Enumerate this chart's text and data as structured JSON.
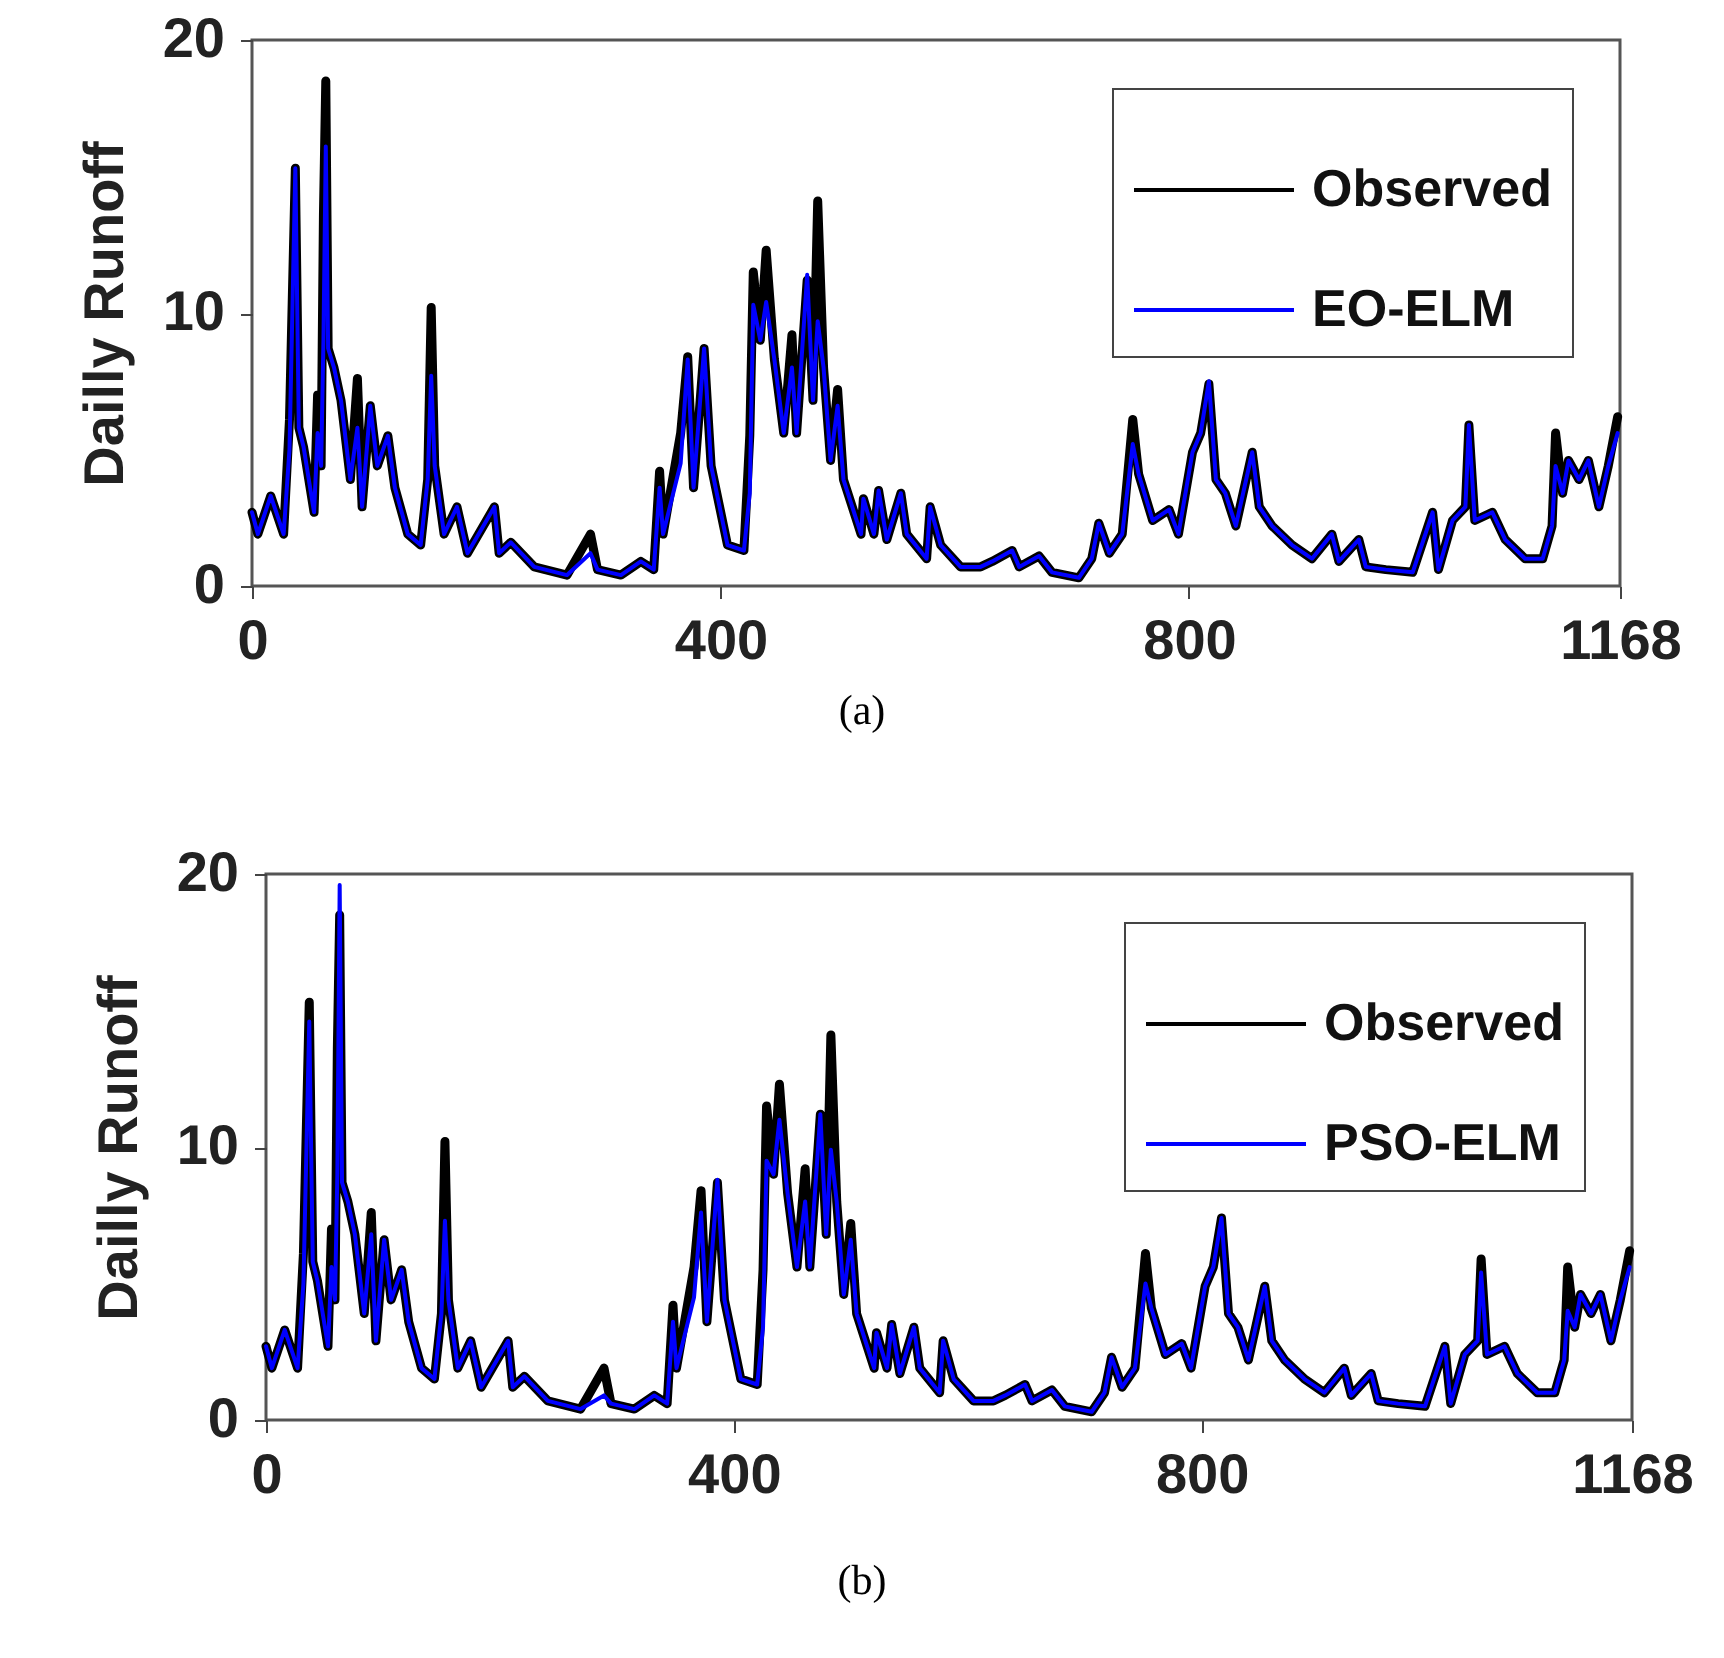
{
  "chart_data": [
    {
      "type": "line",
      "ylabel": "Dailly Runoff",
      "annotations": [
        "(a)"
      ],
      "xlim": [
        0,
        1168
      ],
      "xticks": [
        0,
        400,
        800,
        1168
      ],
      "ylim": [
        0,
        20
      ],
      "yticks": [
        0,
        10,
        20
      ],
      "legend": "top right",
      "x": [
        0,
        5,
        16,
        27,
        32,
        37,
        40,
        44,
        53,
        56,
        59,
        61,
        63,
        65,
        70,
        76,
        84,
        90,
        94,
        101,
        107,
        116,
        122,
        133,
        144,
        150,
        153,
        156,
        164,
        175,
        184,
        207,
        211,
        221,
        241,
        269,
        289,
        295,
        315,
        332,
        343,
        348,
        351,
        366,
        372,
        377,
        386,
        392,
        406,
        420,
        425,
        428,
        434,
        439,
        446,
        454,
        461,
        465,
        474,
        479,
        483,
        488,
        494,
        500,
        505,
        520,
        522,
        531,
        535,
        542,
        554,
        559,
        576,
        579,
        588,
        605,
        622,
        632,
        649,
        655,
        672,
        683,
        706,
        717,
        723,
        732,
        743,
        752,
        757,
        769,
        783,
        791,
        803,
        810,
        817,
        823,
        831,
        840,
        854,
        860,
        871,
        888,
        905,
        922,
        928,
        945,
        951,
        968,
        991,
        1008,
        1013,
        1025,
        1036,
        1039,
        1044,
        1059,
        1070,
        1087,
        1102,
        1110,
        1113,
        1119,
        1124,
        1133,
        1141,
        1150,
        1158,
        1166
      ],
      "series": [
        {
          "name": "Observed",
          "color": "#000000",
          "values": [
            2.7,
            1.9,
            3.3,
            1.9,
            6.1,
            15.3,
            5.8,
            5.1,
            2.7,
            7.0,
            4.4,
            13.6,
            18.5,
            8.7,
            8.0,
            6.8,
            3.9,
            7.6,
            2.9,
            6.6,
            4.4,
            5.5,
            3.6,
            1.9,
            1.5,
            3.9,
            10.2,
            4.4,
            1.9,
            2.9,
            1.2,
            2.9,
            1.2,
            1.6,
            0.7,
            0.4,
            1.9,
            0.6,
            0.4,
            0.9,
            0.6,
            4.2,
            1.9,
            5.6,
            8.4,
            3.6,
            8.7,
            4.4,
            1.5,
            1.3,
            5.5,
            11.5,
            9.0,
            12.3,
            8.3,
            5.6,
            9.2,
            5.6,
            11.2,
            6.8,
            14.1,
            8.0,
            4.6,
            7.2,
            3.9,
            1.9,
            3.2,
            1.9,
            3.5,
            1.7,
            3.4,
            1.9,
            1.0,
            2.9,
            1.5,
            0.7,
            0.7,
            0.9,
            1.3,
            0.7,
            1.1,
            0.5,
            0.3,
            1.0,
            2.3,
            1.2,
            1.9,
            6.1,
            4.1,
            2.4,
            2.8,
            1.9,
            4.9,
            5.6,
            7.4,
            3.9,
            3.4,
            2.2,
            4.9,
            2.9,
            2.2,
            1.5,
            1.0,
            1.9,
            0.9,
            1.7,
            0.7,
            0.6,
            0.5,
            2.7,
            0.6,
            2.4,
            2.9,
            5.9,
            2.4,
            2.7,
            1.7,
            1.0,
            1.0,
            2.2,
            5.6,
            3.4,
            4.6,
            3.9,
            4.6,
            2.9,
            4.4,
            6.2
          ]
        },
        {
          "name": "EO-ELM",
          "color": "#0000ff",
          "values": [
            2.7,
            1.9,
            3.3,
            1.9,
            5.0,
            15.3,
            5.8,
            5.1,
            2.7,
            5.6,
            4.4,
            9.0,
            16.1,
            8.7,
            8.0,
            6.8,
            3.9,
            5.8,
            2.9,
            6.6,
            4.4,
            5.5,
            3.6,
            1.9,
            1.5,
            3.9,
            7.7,
            4.4,
            1.9,
            2.9,
            1.2,
            2.9,
            1.2,
            1.6,
            0.7,
            0.4,
            1.2,
            0.6,
            0.4,
            0.9,
            0.6,
            3.6,
            1.9,
            4.5,
            8.3,
            3.6,
            8.7,
            4.4,
            1.5,
            1.3,
            3.4,
            10.3,
            9.0,
            10.4,
            8.3,
            5.6,
            8.0,
            5.6,
            11.4,
            6.8,
            9.7,
            8.0,
            4.6,
            6.6,
            3.9,
            1.9,
            3.2,
            1.9,
            3.5,
            1.7,
            3.4,
            1.9,
            1.0,
            2.9,
            1.5,
            0.7,
            0.7,
            0.9,
            1.3,
            0.7,
            1.1,
            0.5,
            0.3,
            1.0,
            2.3,
            1.2,
            1.9,
            5.2,
            4.1,
            2.4,
            2.8,
            1.9,
            4.9,
            5.6,
            7.5,
            3.9,
            3.4,
            2.2,
            4.9,
            2.9,
            2.2,
            1.5,
            1.0,
            1.9,
            0.9,
            1.7,
            0.7,
            0.6,
            0.5,
            2.7,
            0.6,
            2.4,
            2.9,
            5.9,
            2.4,
            2.7,
            1.7,
            1.0,
            1.0,
            2.2,
            4.4,
            3.4,
            4.6,
            3.9,
            4.6,
            2.9,
            4.4,
            5.6
          ]
        }
      ]
    },
    {
      "type": "line",
      "ylabel": "Dailly Runoff",
      "annotations": [
        "(b)"
      ],
      "xlim": [
        0,
        1168
      ],
      "xticks": [
        0,
        400,
        800,
        1168
      ],
      "ylim": [
        0,
        20
      ],
      "yticks": [
        0,
        10,
        20
      ],
      "legend": "top right",
      "x": [
        0,
        5,
        16,
        27,
        32,
        37,
        40,
        44,
        53,
        56,
        59,
        61,
        63,
        65,
        70,
        76,
        84,
        90,
        94,
        101,
        107,
        116,
        122,
        133,
        144,
        150,
        153,
        156,
        164,
        175,
        184,
        207,
        211,
        221,
        241,
        269,
        289,
        295,
        315,
        332,
        343,
        348,
        351,
        366,
        372,
        377,
        386,
        392,
        406,
        420,
        425,
        428,
        434,
        439,
        446,
        454,
        461,
        465,
        474,
        479,
        483,
        488,
        494,
        500,
        505,
        520,
        522,
        531,
        535,
        542,
        554,
        559,
        576,
        579,
        588,
        605,
        622,
        632,
        649,
        655,
        672,
        683,
        706,
        717,
        723,
        732,
        743,
        752,
        757,
        769,
        783,
        791,
        803,
        810,
        817,
        823,
        831,
        840,
        854,
        860,
        871,
        888,
        905,
        922,
        928,
        945,
        951,
        968,
        991,
        1008,
        1013,
        1025,
        1036,
        1039,
        1044,
        1059,
        1070,
        1087,
        1102,
        1110,
        1113,
        1119,
        1124,
        1133,
        1141,
        1150,
        1158,
        1166
      ],
      "series": [
        {
          "name": "Observed",
          "color": "#000000",
          "values": [
            2.7,
            1.9,
            3.3,
            1.9,
            6.1,
            15.3,
            5.8,
            5.1,
            2.7,
            7.0,
            4.4,
            13.6,
            18.5,
            8.7,
            8.0,
            6.8,
            3.9,
            7.6,
            2.9,
            6.6,
            4.4,
            5.5,
            3.6,
            1.9,
            1.5,
            3.9,
            10.2,
            4.4,
            1.9,
            2.9,
            1.2,
            2.9,
            1.2,
            1.6,
            0.7,
            0.4,
            1.9,
            0.6,
            0.4,
            0.9,
            0.6,
            4.2,
            1.9,
            5.6,
            8.4,
            3.6,
            8.7,
            4.4,
            1.5,
            1.3,
            5.5,
            11.5,
            9.0,
            12.3,
            8.3,
            5.6,
            9.2,
            5.6,
            11.2,
            6.8,
            14.1,
            8.0,
            4.6,
            7.2,
            3.9,
            1.9,
            3.2,
            1.9,
            3.5,
            1.7,
            3.4,
            1.9,
            1.0,
            2.9,
            1.5,
            0.7,
            0.7,
            0.9,
            1.3,
            0.7,
            1.1,
            0.5,
            0.3,
            1.0,
            2.3,
            1.2,
            1.9,
            6.1,
            4.1,
            2.4,
            2.8,
            1.9,
            4.9,
            5.6,
            7.4,
            3.9,
            3.4,
            2.2,
            4.9,
            2.9,
            2.2,
            1.5,
            1.0,
            1.9,
            0.9,
            1.7,
            0.7,
            0.6,
            0.5,
            2.7,
            0.6,
            2.4,
            2.9,
            5.9,
            2.4,
            2.7,
            1.7,
            1.0,
            1.0,
            2.2,
            5.6,
            3.4,
            4.6,
            3.9,
            4.6,
            2.9,
            4.4,
            6.2
          ]
        },
        {
          "name": "PSO-ELM",
          "color": "#0000ff",
          "values": [
            2.7,
            1.9,
            3.3,
            1.9,
            5.0,
            14.6,
            5.8,
            5.1,
            2.7,
            5.6,
            4.4,
            9.0,
            19.6,
            8.7,
            8.0,
            6.8,
            3.9,
            6.8,
            2.9,
            6.6,
            4.4,
            5.5,
            3.6,
            1.9,
            1.5,
            3.9,
            7.3,
            4.4,
            1.9,
            2.9,
            1.2,
            2.9,
            1.2,
            1.6,
            0.7,
            0.4,
            0.9,
            0.6,
            0.4,
            0.9,
            0.6,
            3.6,
            1.9,
            4.5,
            7.6,
            3.6,
            8.8,
            4.4,
            1.5,
            1.3,
            3.4,
            9.5,
            9.0,
            11.0,
            8.3,
            5.6,
            8.0,
            5.6,
            11.2,
            6.8,
            9.9,
            8.0,
            4.6,
            6.6,
            3.9,
            1.9,
            3.2,
            1.9,
            3.5,
            1.7,
            3.4,
            1.9,
            1.0,
            2.9,
            1.5,
            0.7,
            0.7,
            0.9,
            1.3,
            0.7,
            1.1,
            0.5,
            0.3,
            1.0,
            2.3,
            1.2,
            1.9,
            5.0,
            4.1,
            2.4,
            2.8,
            1.9,
            4.9,
            5.6,
            7.4,
            3.9,
            3.4,
            2.2,
            4.9,
            2.9,
            2.2,
            1.5,
            1.0,
            1.9,
            0.9,
            1.7,
            0.7,
            0.6,
            0.5,
            2.7,
            0.6,
            2.4,
            2.9,
            5.4,
            2.4,
            2.7,
            1.7,
            1.0,
            1.0,
            2.2,
            4.0,
            3.4,
            4.6,
            3.9,
            4.6,
            2.9,
            4.4,
            5.6
          ]
        }
      ]
    }
  ]
}
